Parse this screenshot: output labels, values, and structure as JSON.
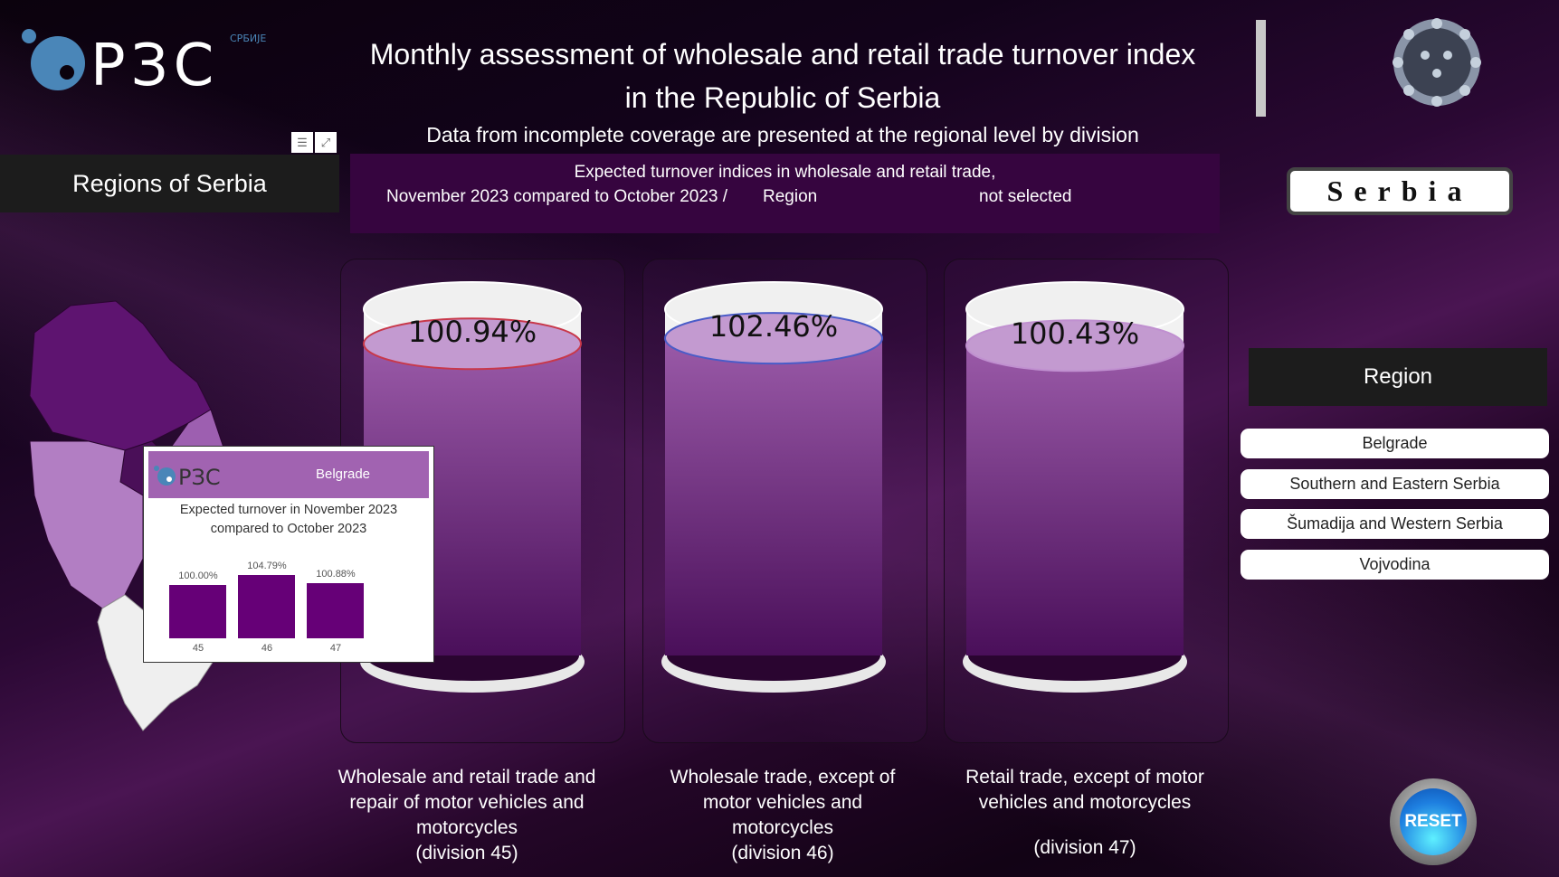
{
  "header": {
    "logo_text": "РЗС",
    "logo_sub": "СРБИЈЕ",
    "title_line1": "Monthly assessment of wholesale and retail trade turnover index",
    "title_line2": "in the Republic of Serbia",
    "subtitle": "Data from incomplete coverage are presented at the regional level by division"
  },
  "visual_icons": {
    "filter": "filter-icon",
    "focus": "focus-mode-icon"
  },
  "map_panel": {
    "title": "Regions of Serbia"
  },
  "info_box": {
    "line1": "Expected turnover indices in wholesale and retail trade,",
    "line2": "November 2023 compared to October 2023 /",
    "region_label": "Region",
    "region_value": "not selected"
  },
  "country_button": "Serbia",
  "cylinders": [
    {
      "value": "100.94%",
      "level": 100.94,
      "label_lines": [
        "Wholesale and retail trade and",
        "repair of motor vehicles and",
        "motorcycles",
        "(division 45)"
      ]
    },
    {
      "value": "102.46%",
      "level": 102.46,
      "label_lines": [
        "Wholesale trade, except of",
        "motor vehicles and",
        "motorcycles",
        "(division 46)"
      ]
    },
    {
      "value": "100.43%",
      "level": 100.43,
      "label_lines": [
        "Retail trade, except of motor",
        "vehicles and motorcycles",
        "",
        "(division 47)"
      ]
    }
  ],
  "region_slicer": {
    "title": "Region",
    "items": [
      "Belgrade",
      "Southern and Eastern Serbia",
      "Šumadija and Western Serbia",
      "Vojvodina"
    ]
  },
  "reset_button": "RESET",
  "tooltip": {
    "logo_text": "РЗС",
    "region": "Belgrade",
    "subtitle_line1": "Expected turnover in November 2023",
    "subtitle_line2": "compared to October 2023"
  },
  "chart_data": {
    "type": "bar",
    "title": "Expected turnover in November 2023 compared to October 2023",
    "categories": [
      "45",
      "46",
      "47"
    ],
    "values": [
      100.0,
      104.79,
      100.88
    ],
    "value_labels": [
      "100.00%",
      "104.79%",
      "100.88%"
    ],
    "color": "#660077"
  }
}
